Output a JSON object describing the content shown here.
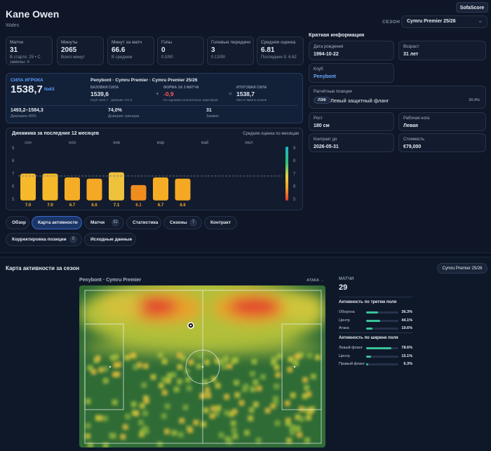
{
  "header": {
    "player": "Kane Owen",
    "country": "Wales",
    "brand": "SofaScore",
    "season_label": "СЕЗОН",
    "season": "Cymru Premier 25/26"
  },
  "stats": [
    {
      "label": "Матчи",
      "value": "31",
      "sub": "В старте: 25 • С замены: 4"
    },
    {
      "label": "Минуты",
      "value": "2065",
      "sub": "Всего минут"
    },
    {
      "label": "Минут за матч",
      "value": "66.6",
      "sub": "В среднем"
    },
    {
      "label": "Голы",
      "value": "0",
      "sub": "0.0/90"
    },
    {
      "label": "Голевые передачи",
      "value": "3",
      "sub": "0.13/90"
    },
    {
      "label": "Средняя оценка",
      "value": "6.81",
      "sub": "Последние 5: 6.62"
    }
  ],
  "strength": {
    "label": "СИЛА ИГРОКА",
    "value": "1538,7",
    "rank": "№63",
    "context": "Penybont · Cymru Premier · Cymru Premier 25/26",
    "components": [
      {
        "label": "БАЗОВАЯ СИЛА",
        "value": "1539,6",
        "sub": "Клуб 1522,7 · доверие ×27,0"
      },
      {
        "label": "ФОРМА ЗА 3 МАТЧА",
        "value": "-0,9",
        "sub": "По оценкам относительно партнёров"
      },
      {
        "label": "ИТОГОВАЯ СИЛА",
        "value": "1538,7",
        "sub": "Место №63 в сезоне"
      }
    ],
    "operators": [
      "+",
      "="
    ],
    "summary": [
      {
        "value": "1493,2–1584,3",
        "label": "Диапазон 80%"
      },
      {
        "value": "74,0%",
        "label": "Доверие тренера"
      },
      {
        "value": "31",
        "label": "Заявок"
      }
    ]
  },
  "rating_chart": {
    "type": "bar",
    "title": "Динамика за последние 12 месяцев",
    "subtitle": "Средняя оценка по месяцам",
    "categories": [
      "сен",
      null,
      "ноя",
      null,
      "янв",
      null,
      "мар",
      null,
      "май",
      null,
      "июл",
      null
    ],
    "values": [
      7.0,
      7.0,
      6.7,
      6.6,
      7.1,
      6.1,
      6.7,
      6.6,
      null,
      null,
      null,
      null
    ],
    "value_labels": [
      "7.0",
      "7.0",
      "6.7",
      "6.6",
      "7.1",
      "6.1",
      "6.7",
      "6.6",
      null,
      null,
      null,
      null
    ],
    "colors": [
      "#f6b92b",
      "#f6b92b",
      "#f5ad25",
      "#f4a823",
      "#eec23a",
      "#f08c1e",
      "#f5ad25",
      "#f4a823",
      null,
      null,
      null,
      null
    ],
    "ylim": [
      4.9,
      9.2
    ],
    "yticks": [
      9,
      8,
      7,
      6,
      5
    ],
    "average": 6.81,
    "colorbar_ticks": [
      9,
      8,
      7,
      6,
      5
    ]
  },
  "tabs": [
    [
      {
        "label": "Обзор"
      },
      {
        "label": "Карта активности",
        "active": true
      },
      {
        "label": "Матчи",
        "count": "32"
      },
      {
        "label": "Статистика"
      },
      {
        "label": "Сезоны",
        "count": "7"
      },
      {
        "label": "Контракт"
      }
    ],
    [
      {
        "label": "Корректировка позиции",
        "count": "0"
      },
      {
        "label": "Исходные данные"
      }
    ]
  ],
  "info": {
    "title": "Краткая информация",
    "cards": [
      {
        "label": "Дата рождения",
        "value": "1994-10-22"
      },
      {
        "label": "Возраст",
        "value": "31 лет"
      },
      {
        "label": "Клуб",
        "value": "Penybont"
      },
      {
        "label": "Рост",
        "value": "180 см"
      },
      {
        "label": "Рабочая нога",
        "value": "Левая"
      },
      {
        "label": "Контракт до",
        "value": "2026-05-31"
      },
      {
        "label": "Стоимость",
        "value": "€79,000"
      }
    ],
    "positions": {
      "label": "Расчётные позиции",
      "code": "ЛЗФ",
      "name": "Левый защитный фланг",
      "share": "90,4%"
    }
  },
  "activity_map": {
    "title": "Карта активности за сезон",
    "competition": "Cymru Premier 25/26",
    "team": "Penybont · Cymru Premier",
    "direction": "АТАКА →",
    "matches_label": "МАТЧИ",
    "matches": "29",
    "groups": [
      {
        "title": "Активность по третям поля",
        "rows": [
          {
            "label": "Оборона",
            "value": 36.3,
            "value_label": "36.3%"
          },
          {
            "label": "Центр",
            "value": 44.1,
            "value_label": "44.1%"
          },
          {
            "label": "Атака",
            "value": 19.6,
            "value_label": "19.6%"
          }
        ]
      },
      {
        "title": "Активность по ширине поля",
        "rows": [
          {
            "label": "Левый фланг",
            "value": 78.6,
            "value_label": "78.6%"
          },
          {
            "label": "Центр",
            "value": 15.1,
            "value_label": "15.1%"
          },
          {
            "label": "Правый фланг",
            "value": 6.3,
            "value_label": "6.3%"
          }
        ]
      }
    ]
  }
}
